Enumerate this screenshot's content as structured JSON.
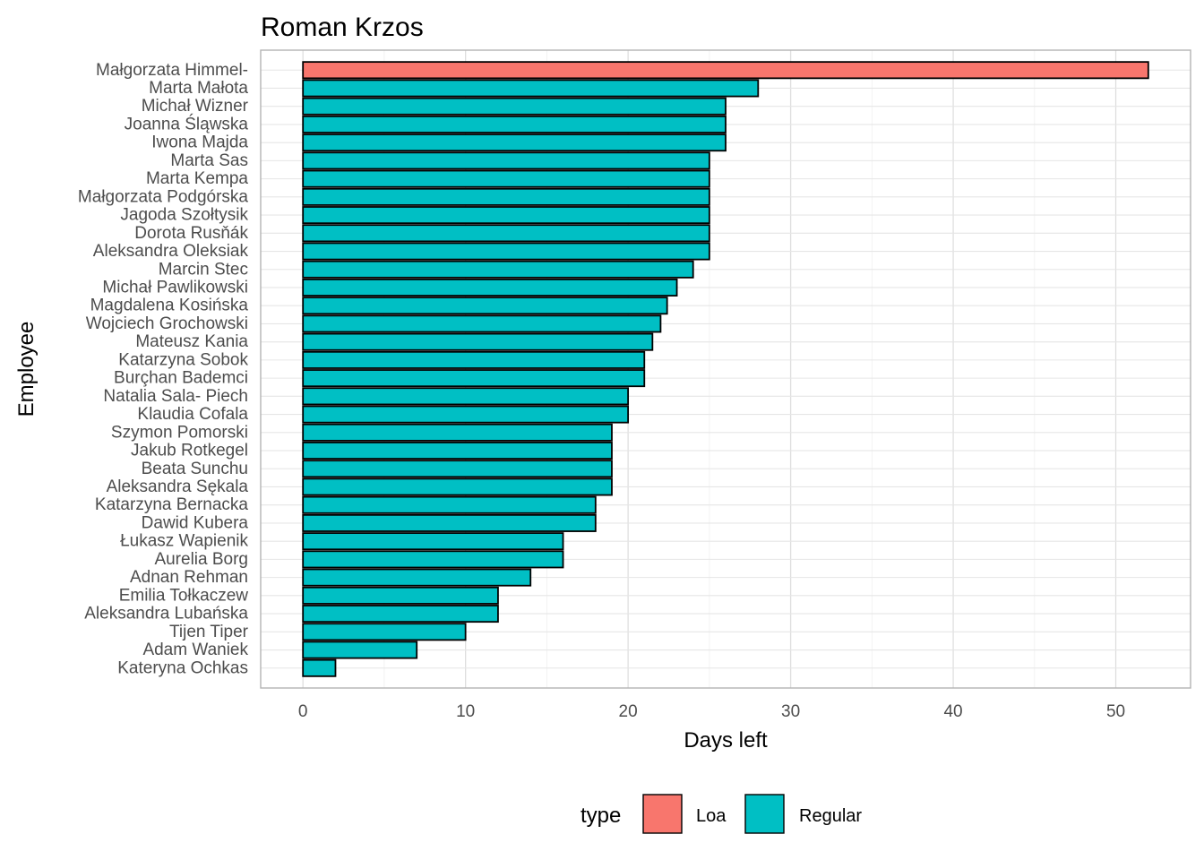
{
  "chart_data": {
    "type": "bar",
    "orientation": "horizontal",
    "title": "Roman Krzos",
    "xlabel": "Days left",
    "ylabel": "Employee",
    "xlim": [
      -2.6,
      54.6
    ],
    "x_ticks": [
      0,
      10,
      20,
      30,
      40,
      50
    ],
    "grid": true,
    "legend_position": "bottom",
    "legend": {
      "title": "type",
      "entries": [
        {
          "label": "Loa",
          "color": "#F8766D"
        },
        {
          "label": "Regular",
          "color": "#00BFC4"
        }
      ]
    },
    "categories": [
      "Małgorzata Himmel-",
      "Marta Małota",
      "Michał Wizner",
      "Joanna Śląwska",
      "Iwona Majda",
      "Marta Sas",
      "Marta Kempa",
      "Małgorzata Podgórska",
      "Jagoda Szołtysik",
      "Dorota Rusňák",
      "Aleksandra Oleksiak",
      "Marcin Stec",
      "Michał Pawlikowski",
      "Magdalena Kosińska",
      "Wojciech Grochowski",
      "Mateusz Kania",
      "Katarzyna Sobok",
      "Burçhan Bademci",
      "Natalia Sala- Piech",
      "Klaudia Cofala",
      "Szymon Pomorski",
      "Jakub Rotkegel",
      "Beata Sunchu",
      "Aleksandra Sękala",
      "Katarzyna Bernacka",
      "Dawid Kubera",
      "Łukasz Wapienik",
      "Aurelia Borg",
      "Adnan  Rehman",
      "Emilia Tołkaczew",
      "Aleksandra Lubańska",
      "Tijen Tiper",
      "Adam Waniek",
      "Kateryna Ochkas"
    ],
    "values": [
      52,
      28,
      26,
      26,
      26,
      25,
      25,
      25,
      25,
      25,
      25,
      24,
      23,
      22.4,
      22,
      21.5,
      21,
      21,
      20,
      20,
      19,
      19,
      19,
      19,
      18,
      18,
      16,
      16,
      14,
      12,
      12,
      10,
      7,
      2
    ],
    "types": [
      "Loa",
      "Regular",
      "Regular",
      "Regular",
      "Regular",
      "Regular",
      "Regular",
      "Regular",
      "Regular",
      "Regular",
      "Regular",
      "Regular",
      "Regular",
      "Regular",
      "Regular",
      "Regular",
      "Regular",
      "Regular",
      "Regular",
      "Regular",
      "Regular",
      "Regular",
      "Regular",
      "Regular",
      "Regular",
      "Regular",
      "Regular",
      "Regular",
      "Regular",
      "Regular",
      "Regular",
      "Regular",
      "Regular",
      "Regular"
    ]
  }
}
